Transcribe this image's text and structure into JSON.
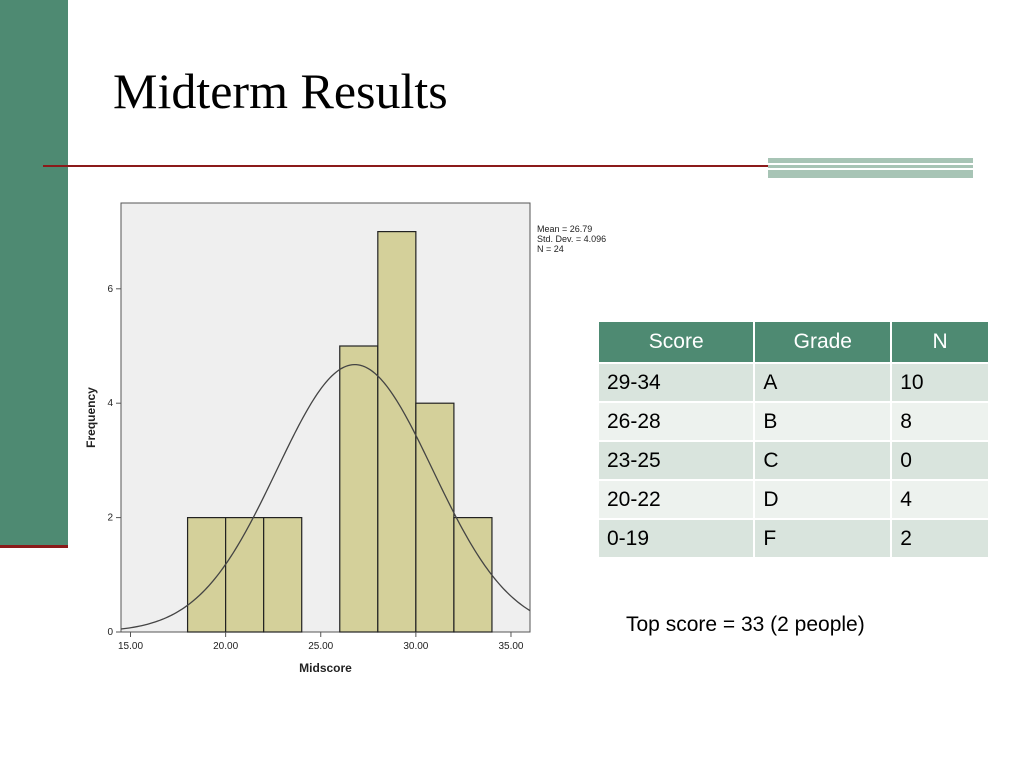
{
  "slide": {
    "title": "Midterm Results",
    "accent_color": "#4e8a72",
    "rule_color": "#8b1a1a"
  },
  "chart_data": {
    "type": "bar",
    "subtype": "histogram",
    "xlabel": "Midscore",
    "ylabel": "Frequency",
    "xlim": [
      14.5,
      36
    ],
    "ylim": [
      0,
      7.5
    ],
    "x_ticks": [
      15,
      20,
      25,
      30,
      35
    ],
    "x_tick_labels": [
      "15.00",
      "20.00",
      "25.00",
      "30.00",
      "35.00"
    ],
    "y_ticks": [
      0,
      2,
      4,
      6
    ],
    "y_tick_labels": [
      "0",
      "2",
      "4",
      "6"
    ],
    "bins": [
      {
        "start": 18,
        "end": 20,
        "count": 2
      },
      {
        "start": 20,
        "end": 22,
        "count": 2
      },
      {
        "start": 22,
        "end": 24,
        "count": 2
      },
      {
        "start": 24,
        "end": 26,
        "count": 0
      },
      {
        "start": 26,
        "end": 28,
        "count": 5
      },
      {
        "start": 28,
        "end": 30,
        "count": 7
      },
      {
        "start": 30,
        "end": 32,
        "count": 4
      },
      {
        "start": 32,
        "end": 34,
        "count": 2
      }
    ],
    "bar_color": "#d4d09a",
    "plot_background": "#efefef",
    "normal_curve": {
      "mean": 26.79,
      "std": 4.096,
      "n": 24
    },
    "stats_text": [
      "Mean = 26.79",
      "Std. Dev. = 4.096",
      "N = 24"
    ],
    "grid": false
  },
  "table": {
    "headers": [
      "Score",
      "Grade",
      "N"
    ],
    "rows": [
      [
        "29-34",
        "A",
        "10"
      ],
      [
        "26-28",
        "B",
        "8"
      ],
      [
        "23-25",
        "C",
        "0"
      ],
      [
        "20-22",
        "D",
        "4"
      ],
      [
        "0-19",
        "F",
        "2"
      ]
    ]
  },
  "note": "Top score = 33 (2 people)"
}
